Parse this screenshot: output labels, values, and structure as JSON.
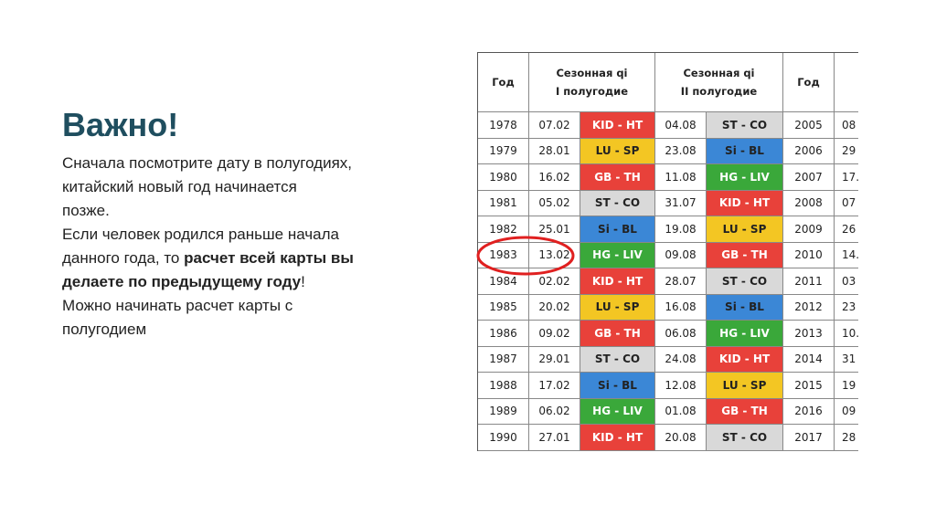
{
  "slide": {
    "heading": "Важно!",
    "body": [
      [
        "Сначала посмотрите дату в полугодиях,"
      ],
      [
        "китайский новый год начинается"
      ],
      [
        "позже."
      ],
      [
        "Если человек родился раньше начала"
      ],
      [
        "данного года, то ",
        {
          "bold": "расчет всей карты вы"
        }
      ],
      [
        {
          "bold": "делаете по предыдущему году"
        },
        "!"
      ],
      [
        "Можно начинать расчет карты с"
      ],
      [
        "полугодием"
      ]
    ]
  },
  "table": {
    "headers": [
      [
        "Год"
      ],
      [
        "Сезонная qi",
        "I полугодие"
      ],
      [
        "Сезонная qi",
        "II полугодие"
      ],
      [
        "Год"
      ]
    ],
    "colors": {
      "KID - HT": "#e8413a",
      "LU - SP": "#f3c623",
      "GB - TH": "#e8413a",
      "ST - CO": "#d9d9d9",
      "Si - BL": "#3b87d6",
      "HG - LIV": "#3aa83a"
    },
    "rows": [
      [
        "1978",
        "07.02",
        "KID - HT",
        "04.08",
        "ST - CO",
        "2005",
        "08"
      ],
      [
        "1979",
        "28.01",
        "LU - SP",
        "23.08",
        "Si - BL",
        "2006",
        "29"
      ],
      [
        "1980",
        "16.02",
        "GB - TH",
        "11.08",
        "HG - LIV",
        "2007",
        "17."
      ],
      [
        "1981",
        "05.02",
        "ST - CO",
        "31.07",
        "KID - HT",
        "2008",
        "07"
      ],
      [
        "1982",
        "25.01",
        "Si - BL",
        "19.08",
        "LU - SP",
        "2009",
        "26"
      ],
      [
        "1983",
        "13.02",
        "HG - LIV",
        "09.08",
        "GB - TH",
        "2010",
        "14."
      ],
      [
        "1984",
        "02.02",
        "KID - HT",
        "28.07",
        "ST - CO",
        "2011",
        "03"
      ],
      [
        "1985",
        "20.02",
        "LU - SP",
        "16.08",
        "Si - BL",
        "2012",
        "23"
      ],
      [
        "1986",
        "09.02",
        "GB - TH",
        "06.08",
        "HG - LIV",
        "2013",
        "10."
      ],
      [
        "1987",
        "29.01",
        "ST - CO",
        "24.08",
        "KID - HT",
        "2014",
        "31"
      ],
      [
        "1988",
        "17.02",
        "Si - BL",
        "12.08",
        "LU - SP",
        "2015",
        "19"
      ],
      [
        "1989",
        "06.02",
        "HG - LIV",
        "01.08",
        "GB - TH",
        "2016",
        "09"
      ],
      [
        "1990",
        "27.01",
        "KID - HT",
        "20.08",
        "ST - CO",
        "2017",
        "28"
      ]
    ]
  }
}
